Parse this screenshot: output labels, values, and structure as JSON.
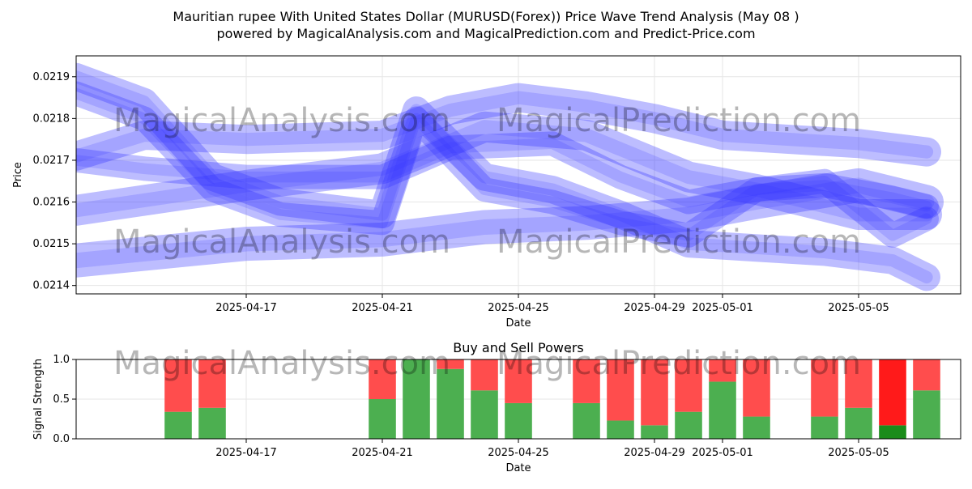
{
  "title_line1": "Mauritian rupee With United States Dollar (MURUSD(Forex)) Price Wave Trend Analysis (May 08 )",
  "title_line2": "powered by MagicalAnalysis.com and MagicalPrediction.com and Predict-Price.com",
  "watermarks": [
    "MagicalAnalysis.com",
    "MagicalPrediction.com"
  ],
  "colors": {
    "wave": "#3333ff",
    "buy": "#4caf50",
    "sell": "#ff4d4d",
    "buy_last": "#1a8c1a",
    "sell_last": "#ff1a1a"
  },
  "chart_data": [
    {
      "type": "line",
      "title": "",
      "xlabel": "Date",
      "ylabel": "Price",
      "x_range": [
        "2025-04-12",
        "2025-05-08"
      ],
      "ylim": [
        0.02138,
        0.02195
      ],
      "yticks": [
        0.0214,
        0.0215,
        0.0216,
        0.0217,
        0.0218,
        0.0219
      ],
      "ytick_labels": [
        "0.0214",
        "0.0215",
        "0.0216",
        "0.0217",
        "0.0218",
        "0.0219"
      ],
      "xticks": [
        "2025-04-17",
        "2025-04-21",
        "2025-04-25",
        "2025-04-29",
        "2025-05-01",
        "2025-05-05"
      ],
      "grid": true,
      "series": [
        {
          "x": [
            "2025-04-12",
            "2025-04-17",
            "2025-04-21",
            "2025-04-24",
            "2025-04-27",
            "2025-04-30",
            "2025-05-02",
            "2025-05-05",
            "2025-05-07"
          ],
          "values": [
            0.02146,
            0.0215,
            0.02151,
            0.02154,
            0.02155,
            0.02157,
            0.0216,
            0.02164,
            0.0216
          ]
        },
        {
          "x": [
            "2025-04-12",
            "2025-04-17",
            "2025-04-21",
            "2025-04-24",
            "2025-04-27",
            "2025-04-30",
            "2025-05-02",
            "2025-05-05",
            "2025-05-07"
          ],
          "values": [
            0.02158,
            0.02164,
            0.02168,
            0.02178,
            0.02176,
            0.02166,
            0.02163,
            0.02157,
            0.02157
          ]
        },
        {
          "x": [
            "2025-04-12",
            "2025-04-14",
            "2025-04-17",
            "2025-04-21",
            "2025-04-23",
            "2025-04-25",
            "2025-04-27",
            "2025-04-29",
            "2025-05-01",
            "2025-05-03",
            "2025-05-05",
            "2025-05-07"
          ],
          "values": [
            0.02171,
            0.02176,
            0.02175,
            0.02176,
            0.02182,
            0.02185,
            0.02183,
            0.0218,
            0.02176,
            0.02175,
            0.02174,
            0.02172
          ]
        },
        {
          "x": [
            "2025-04-12",
            "2025-04-14",
            "2025-04-17",
            "2025-04-21",
            "2025-04-23",
            "2025-04-26",
            "2025-04-28",
            "2025-04-30",
            "2025-05-02",
            "2025-05-04",
            "2025-05-06",
            "2025-05-07"
          ],
          "values": [
            0.0217,
            0.02168,
            0.02166,
            0.02166,
            0.02173,
            0.02174,
            0.02166,
            0.0216,
            0.02163,
            0.02164,
            0.02161,
            0.02159
          ]
        },
        {
          "x": [
            "2025-04-12",
            "2025-04-14",
            "2025-04-16",
            "2025-04-18",
            "2025-04-21",
            "2025-04-22",
            "2025-04-24",
            "2025-04-26",
            "2025-04-28",
            "2025-04-30",
            "2025-05-02",
            "2025-05-04",
            "2025-05-06",
            "2025-05-07"
          ],
          "values": [
            0.0219,
            0.02184,
            0.02166,
            0.0216,
            0.02157,
            0.02182,
            0.02166,
            0.02163,
            0.02157,
            0.0215,
            0.02149,
            0.02148,
            0.02146,
            0.02142
          ]
        },
        {
          "x": [
            "2025-04-12",
            "2025-04-14",
            "2025-04-16",
            "2025-04-18",
            "2025-04-21",
            "2025-04-22",
            "2025-04-24",
            "2025-04-26",
            "2025-04-28",
            "2025-04-30",
            "2025-05-02",
            "2025-05-04",
            "2025-05-06",
            "2025-05-07"
          ],
          "values": [
            0.02186,
            0.0218,
            0.02163,
            0.02157,
            0.02155,
            0.0218,
            0.02163,
            0.0216,
            0.02155,
            0.02152,
            0.02163,
            0.02165,
            0.02152,
            0.02156
          ]
        }
      ]
    },
    {
      "type": "bar",
      "title": "Buy and Sell Powers",
      "xlabel": "Date",
      "ylabel": "Signal Strength",
      "ylim": [
        0,
        1
      ],
      "yticks": [
        0,
        0.5,
        1
      ],
      "ytick_labels": [
        "0.0",
        "0.5",
        "1.0"
      ],
      "xticks": [
        "2025-04-17",
        "2025-04-21",
        "2025-04-25",
        "2025-04-29",
        "2025-05-01",
        "2025-05-05"
      ],
      "x_range": [
        "2025-04-12",
        "2025-05-08"
      ],
      "grid": true,
      "categories": [
        "2025-04-15",
        "2025-04-16",
        "2025-04-21",
        "2025-04-22",
        "2025-04-23",
        "2025-04-24",
        "2025-04-25",
        "2025-04-27",
        "2025-04-28",
        "2025-04-29",
        "2025-04-30",
        "2025-05-01",
        "2025-05-02",
        "2025-05-04",
        "2025-05-05",
        "2025-05-06",
        "2025-05-07"
      ],
      "series": [
        {
          "name": "",
          "values": [
            0.34,
            0.39,
            0.5,
            1.0,
            0.88,
            0.61,
            0.45,
            0.45,
            0.23,
            0.17,
            0.34,
            0.72,
            0.28,
            0.28,
            0.39,
            0.17,
            0.61
          ]
        },
        {
          "name": "",
          "values": [
            0.66,
            0.61,
            0.5,
            0.0,
            0.12,
            0.39,
            0.55,
            0.55,
            0.77,
            0.83,
            0.66,
            0.28,
            0.72,
            0.72,
            0.61,
            0.83,
            0.39
          ]
        }
      ]
    }
  ]
}
